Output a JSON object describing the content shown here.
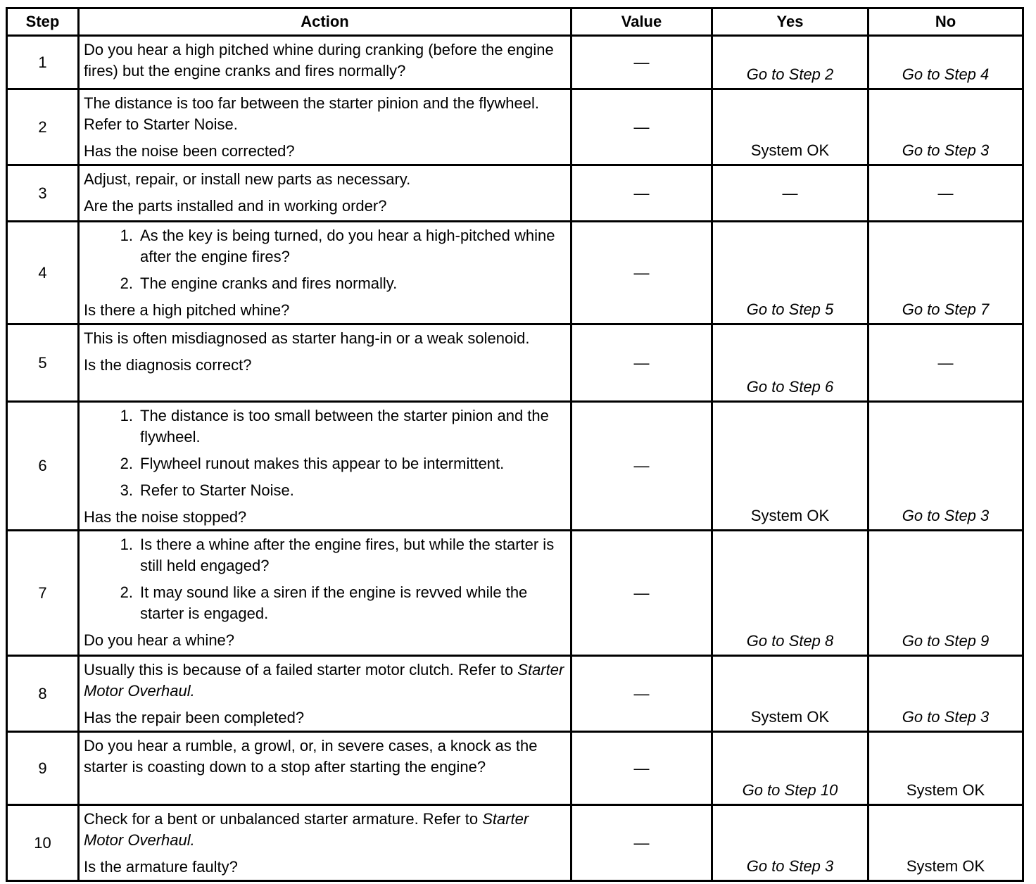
{
  "headers": {
    "step": "Step",
    "action": "Action",
    "value": "Value",
    "yes": "Yes",
    "no": "No"
  },
  "rows": [
    {
      "step": "1",
      "value": "—",
      "yes": {
        "text": "Go to Step 2",
        "italic": true
      },
      "no": {
        "text": "Go to Step 4",
        "italic": true
      },
      "action": [
        {
          "type": "p",
          "segments": [
            {
              "text": "Do you hear a high pitched whine during cranking (before the engine fires) but the engine cranks and fires normally?"
            }
          ]
        }
      ]
    },
    {
      "step": "2",
      "value": "—",
      "yes": {
        "text": "System OK",
        "italic": false
      },
      "no": {
        "text": "Go to Step 3",
        "italic": true
      },
      "action": [
        {
          "type": "p",
          "segments": [
            {
              "text": "The distance is too far between the starter pinion and the flywheel. Refer to Starter Noise."
            }
          ]
        },
        {
          "type": "p",
          "segments": [
            {
              "text": "Has the noise been corrected?"
            }
          ]
        }
      ]
    },
    {
      "step": "3",
      "value": "—",
      "yes": {
        "text": "—",
        "italic": false
      },
      "no": {
        "text": "—",
        "italic": false
      },
      "action": [
        {
          "type": "p",
          "segments": [
            {
              "text": "Adjust, repair, or install new parts as necessary."
            }
          ]
        },
        {
          "type": "p",
          "segments": [
            {
              "text": "Are the parts installed and in working order?"
            }
          ]
        }
      ]
    },
    {
      "step": "4",
      "value": "—",
      "yes": {
        "text": "Go to Step 5",
        "italic": true
      },
      "no": {
        "text": "Go to Step 7",
        "italic": true
      },
      "action": [
        {
          "type": "li",
          "num": "1.",
          "segments": [
            {
              "text": "As the key is being turned, do you hear a high-pitched whine after the engine fires?"
            }
          ]
        },
        {
          "type": "li",
          "num": "2.",
          "segments": [
            {
              "text": "The engine cranks and fires normally."
            }
          ]
        },
        {
          "type": "p",
          "segments": [
            {
              "text": "Is there a high pitched whine?"
            }
          ]
        }
      ]
    },
    {
      "step": "5",
      "value": "—",
      "yes": {
        "text": "Go to Step 6",
        "italic": true
      },
      "no": {
        "text": "—",
        "italic": false,
        "center": true
      },
      "action": [
        {
          "type": "p",
          "segments": [
            {
              "text": "This is often misdiagnosed as starter hang-in or a weak solenoid."
            }
          ]
        },
        {
          "type": "p",
          "segments": [
            {
              "text": "Is the diagnosis correct?"
            }
          ]
        }
      ]
    },
    {
      "step": "6",
      "value": "—",
      "yes": {
        "text": "System OK",
        "italic": false
      },
      "no": {
        "text": "Go to Step 3",
        "italic": true
      },
      "action": [
        {
          "type": "li",
          "num": "1.",
          "segments": [
            {
              "text": "The distance is too small between the starter pinion and the flywheel."
            }
          ]
        },
        {
          "type": "li",
          "num": "2.",
          "segments": [
            {
              "text": "Flywheel runout makes this appear to be intermittent."
            }
          ]
        },
        {
          "type": "li",
          "num": "3.",
          "segments": [
            {
              "text": "Refer to Starter Noise."
            }
          ]
        },
        {
          "type": "p",
          "segments": [
            {
              "text": "Has the noise stopped?"
            }
          ]
        }
      ]
    },
    {
      "step": "7",
      "value": "—",
      "yes": {
        "text": "Go to Step 8",
        "italic": true
      },
      "no": {
        "text": "Go to Step 9",
        "italic": true
      },
      "action": [
        {
          "type": "li",
          "num": "1.",
          "segments": [
            {
              "text": "Is there a whine after the engine fires, but while the starter is still held engaged?"
            }
          ]
        },
        {
          "type": "li",
          "num": "2.",
          "segments": [
            {
              "text": "It may sound like a siren if the engine is revved while the starter is engaged."
            }
          ]
        },
        {
          "type": "p",
          "segments": [
            {
              "text": "Do you hear a whine?"
            }
          ]
        }
      ]
    },
    {
      "step": "8",
      "value": "—",
      "yes": {
        "text": "System OK",
        "italic": false
      },
      "no": {
        "text": "Go to Step 3",
        "italic": true
      },
      "action": [
        {
          "type": "p",
          "segments": [
            {
              "text": "Usually this is because of a failed starter motor clutch. Refer to "
            },
            {
              "text": "Starter Motor Overhaul.",
              "italic": true
            }
          ]
        },
        {
          "type": "p",
          "segments": [
            {
              "text": "Has the repair been completed?"
            }
          ]
        }
      ]
    },
    {
      "step": "9",
      "value": "—",
      "yes": {
        "text": "Go to Step 10",
        "italic": true
      },
      "no": {
        "text": "System OK",
        "italic": false
      },
      "action": [
        {
          "type": "p",
          "segments": [
            {
              "text": "Do you hear a rumble, a growl, or, in severe cases, a knock as the starter is coasting down to a stop after starting the engine?"
            }
          ]
        }
      ]
    },
    {
      "step": "10",
      "value": "—",
      "yes": {
        "text": "Go to Step 3",
        "italic": true
      },
      "no": {
        "text": "System OK",
        "italic": false
      },
      "action": [
        {
          "type": "p",
          "segments": [
            {
              "text": "Check for a bent or unbalanced starter armature. Refer to "
            },
            {
              "text": "Starter Motor Overhaul.",
              "italic": true
            }
          ]
        },
        {
          "type": "p",
          "segments": [
            {
              "text": "Is the armature faulty?"
            }
          ]
        }
      ]
    }
  ]
}
